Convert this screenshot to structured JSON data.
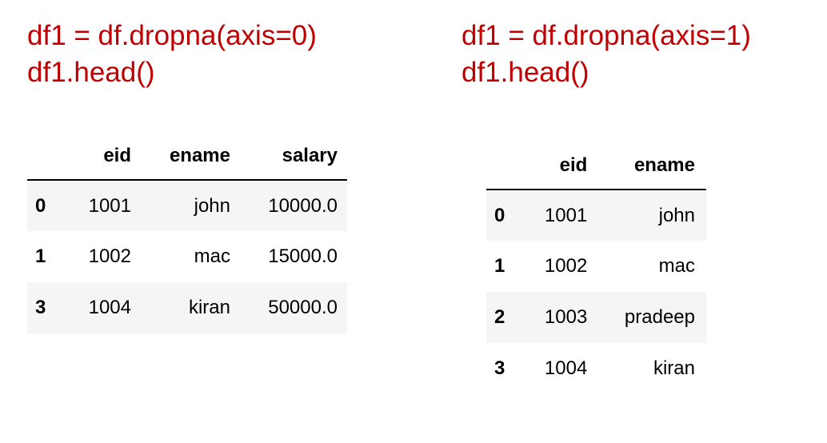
{
  "left": {
    "code_lines": [
      "df1 = df.dropna(axis=0)",
      "df1.head()"
    ],
    "table": {
      "columns": [
        "eid",
        "ename",
        "salary"
      ],
      "rows": [
        {
          "index": "0",
          "eid": "1001",
          "ename": "john",
          "salary": "10000.0"
        },
        {
          "index": "1",
          "eid": "1002",
          "ename": "mac",
          "salary": "15000.0"
        },
        {
          "index": "3",
          "eid": "1004",
          "ename": "kiran",
          "salary": "50000.0"
        }
      ]
    }
  },
  "right": {
    "code_lines": [
      "df1 = df.dropna(axis=1)",
      "df1.head()"
    ],
    "table": {
      "columns": [
        "eid",
        "ename"
      ],
      "rows": [
        {
          "index": "0",
          "eid": "1001",
          "ename": "john"
        },
        {
          "index": "1",
          "eid": "1002",
          "ename": "mac"
        },
        {
          "index": "2",
          "eid": "1003",
          "ename": "pradeep"
        },
        {
          "index": "3",
          "eid": "1004",
          "ename": "kiran"
        }
      ]
    }
  },
  "colors": {
    "code_text": "#c00000",
    "table_text": "#000000",
    "row_stripe": "#f5f5f5",
    "header_rule": "#000000"
  }
}
